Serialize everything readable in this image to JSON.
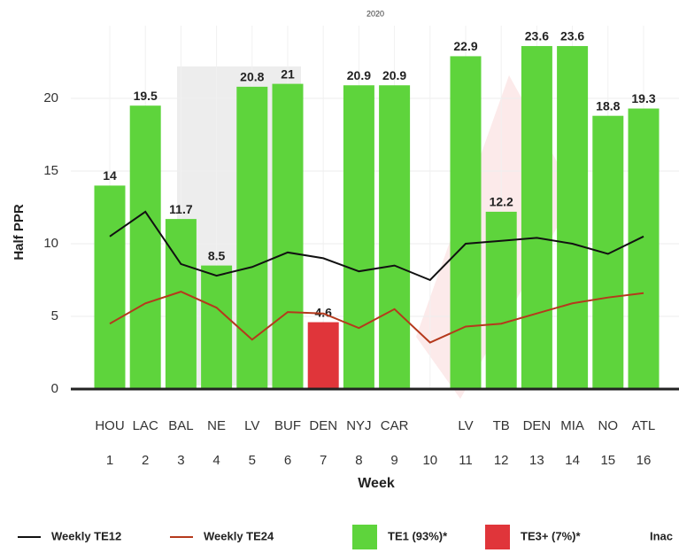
{
  "chart_data": {
    "type": "bar",
    "subtitle": "2020",
    "y_label": "Half PPR",
    "x_label": "Week",
    "categories": [
      1,
      2,
      3,
      4,
      5,
      6,
      7,
      8,
      9,
      10,
      11,
      12,
      13,
      14,
      15,
      16
    ],
    "opponents": [
      "HOU",
      "LAC",
      "BAL",
      "NE",
      "LV",
      "BUF",
      "DEN",
      "NYJ",
      "CAR",
      null,
      "LV",
      "TB",
      "DEN",
      "MIA",
      "NO",
      "ATL"
    ],
    "values": [
      14,
      19.5,
      11.7,
      8.5,
      20.8,
      21,
      4.6,
      20.9,
      20.9,
      null,
      22.9,
      12.2,
      23.6,
      23.6,
      18.8,
      19.3
    ],
    "colors": [
      "#5ed43c",
      "#5ed43c",
      "#5ed43c",
      "#5ed43c",
      "#5ed43c",
      "#5ed43c",
      "#e0353a",
      "#5ed43c",
      "#5ed43c",
      null,
      "#5ed43c",
      "#5ed43c",
      "#5ed43c",
      "#5ed43c",
      "#5ed43c",
      "#5ed43c"
    ],
    "lines": [
      {
        "name": "Weekly TE12",
        "color": "#111111",
        "values": [
          10.5,
          12.2,
          8.6,
          7.8,
          8.4,
          9.4,
          9.0,
          8.1,
          8.5,
          7.5,
          10.0,
          10.2,
          10.4,
          10.0,
          9.3,
          10.5
        ]
      },
      {
        "name": "Weekly TE24",
        "color": "#b5391c",
        "values": [
          4.5,
          5.9,
          6.7,
          5.6,
          3.4,
          5.3,
          5.2,
          4.2,
          5.5,
          3.2,
          4.3,
          4.5,
          5.2,
          5.9,
          6.3,
          6.6
        ]
      }
    ],
    "bar_legend": [
      {
        "name": "TE1 (93%)*",
        "color": "#5ed43c"
      },
      {
        "name": "TE3+ (7%)*",
        "color": "#e0353a"
      }
    ],
    "legend_extra": "Inac",
    "ylim": [
      0,
      25
    ],
    "yticks": [
      0,
      5,
      10,
      15,
      20
    ],
    "grid": true
  }
}
